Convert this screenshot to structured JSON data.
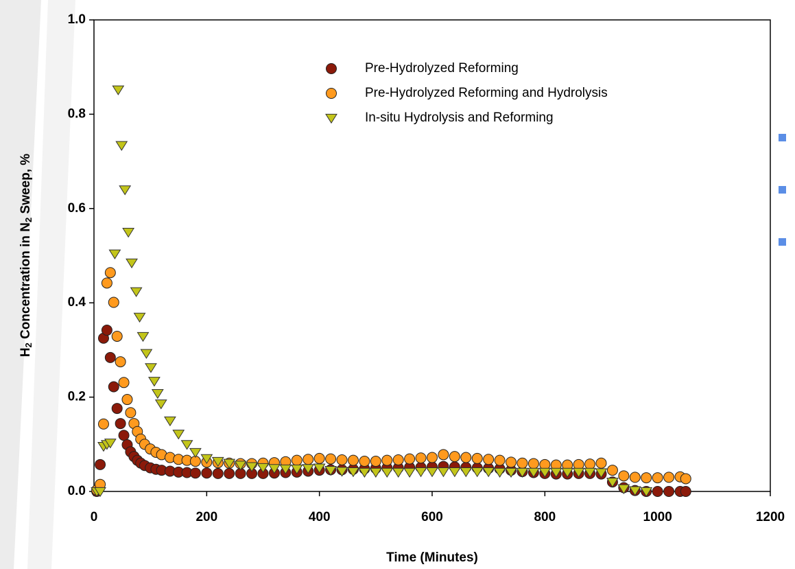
{
  "chart_data": {
    "type": "scatter",
    "xlabel": "Time (Minutes)",
    "ylabel_parts": [
      "H",
      "2",
      " Concentration in N",
      "2",
      " Sweep, %"
    ],
    "xlim": [
      0,
      1200
    ],
    "xticks": [
      0,
      200,
      400,
      600,
      800,
      1000,
      1200
    ],
    "ylim": [
      0,
      1
    ],
    "yticks": [
      {
        "value": 0,
        "label": "0.0"
      },
      0.2,
      0.4,
      0.6,
      0.8,
      {
        "value": 1,
        "label": "1.0"
      }
    ],
    "series": [
      {
        "name": "Pre-Hydrolyzed Reforming",
        "color": "#8b1a0a",
        "marker": "circle",
        "x": [
          5,
          11,
          17,
          23,
          29,
          35,
          41,
          47,
          53,
          59,
          65,
          71,
          77,
          83,
          90,
          100,
          110,
          120,
          135,
          150,
          165,
          180,
          200,
          220,
          240,
          260,
          280,
          300,
          320,
          340,
          360,
          380,
          400,
          420,
          440,
          460,
          480,
          500,
          520,
          540,
          560,
          580,
          600,
          620,
          640,
          660,
          680,
          700,
          720,
          740,
          760,
          780,
          800,
          820,
          840,
          860,
          880,
          900,
          920,
          940,
          960,
          980,
          1000,
          1020,
          1040,
          1050
        ],
        "values": [
          0.0,
          0.057,
          0.325,
          0.342,
          0.284,
          0.222,
          0.176,
          0.144,
          0.119,
          0.099,
          0.084,
          0.074,
          0.066,
          0.06,
          0.055,
          0.05,
          0.047,
          0.045,
          0.043,
          0.041,
          0.04,
          0.039,
          0.039,
          0.038,
          0.038,
          0.038,
          0.038,
          0.038,
          0.039,
          0.04,
          0.041,
          0.043,
          0.045,
          0.046,
          0.046,
          0.047,
          0.048,
          0.049,
          0.05,
          0.05,
          0.051,
          0.051,
          0.052,
          0.053,
          0.052,
          0.051,
          0.05,
          0.049,
          0.048,
          0.045,
          0.042,
          0.04,
          0.038,
          0.037,
          0.037,
          0.038,
          0.038,
          0.037,
          0.02,
          0.008,
          0.002,
          0.0,
          0.0,
          0.0,
          0.0,
          0.0
        ]
      },
      {
        "name": "Pre-Hydrolyzed Reforming and Hydrolysis",
        "color": "#ff9a1e",
        "marker": "circle",
        "x": [
          5,
          11,
          17,
          23,
          29,
          35,
          41,
          47,
          53,
          59,
          65,
          71,
          77,
          83,
          90,
          100,
          110,
          120,
          135,
          150,
          165,
          180,
          200,
          220,
          240,
          260,
          280,
          300,
          320,
          340,
          360,
          380,
          400,
          420,
          440,
          460,
          480,
          500,
          520,
          540,
          560,
          580,
          600,
          620,
          640,
          660,
          680,
          700,
          720,
          740,
          760,
          780,
          800,
          820,
          840,
          860,
          880,
          900,
          920,
          940,
          960,
          980,
          1000,
          1020,
          1040,
          1050
        ],
        "values": [
          0.003,
          0.015,
          0.143,
          0.442,
          0.464,
          0.401,
          0.329,
          0.275,
          0.231,
          0.195,
          0.167,
          0.144,
          0.127,
          0.111,
          0.1,
          0.09,
          0.083,
          0.078,
          0.072,
          0.068,
          0.066,
          0.064,
          0.062,
          0.061,
          0.06,
          0.059,
          0.059,
          0.06,
          0.061,
          0.063,
          0.066,
          0.068,
          0.07,
          0.069,
          0.067,
          0.066,
          0.064,
          0.064,
          0.066,
          0.067,
          0.069,
          0.071,
          0.072,
          0.078,
          0.074,
          0.072,
          0.07,
          0.068,
          0.066,
          0.062,
          0.06,
          0.059,
          0.057,
          0.056,
          0.056,
          0.057,
          0.058,
          0.06,
          0.045,
          0.033,
          0.03,
          0.029,
          0.029,
          0.03,
          0.031,
          0.027
        ]
      },
      {
        "name": "In-situ Hydrolysis and Reforming",
        "color": "#c3c51a",
        "marker": "triangle",
        "x": [
          5,
          11,
          17,
          23,
          29,
          37,
          43,
          49,
          55,
          61,
          67,
          75,
          81,
          87,
          93,
          101,
          107,
          113,
          119,
          135,
          150,
          165,
          180,
          200,
          220,
          240,
          260,
          280,
          300,
          320,
          340,
          360,
          380,
          400,
          420,
          440,
          460,
          480,
          500,
          520,
          540,
          560,
          580,
          600,
          620,
          640,
          660,
          680,
          700,
          720,
          740,
          760,
          780,
          800,
          820,
          840,
          860,
          880,
          900,
          920,
          940,
          960,
          980
        ],
        "values": [
          0.0,
          0.0,
          0.096,
          0.1,
          0.103,
          0.504,
          0.852,
          0.734,
          0.64,
          0.55,
          0.485,
          0.424,
          0.37,
          0.329,
          0.293,
          0.263,
          0.234,
          0.208,
          0.186,
          0.15,
          0.122,
          0.1,
          0.083,
          0.07,
          0.064,
          0.06,
          0.056,
          0.053,
          0.051,
          0.049,
          0.048,
          0.048,
          0.049,
          0.05,
          0.045,
          0.043,
          0.042,
          0.041,
          0.041,
          0.041,
          0.041,
          0.041,
          0.042,
          0.042,
          0.042,
          0.042,
          0.042,
          0.042,
          0.042,
          0.041,
          0.041,
          0.041,
          0.041,
          0.041,
          0.041,
          0.041,
          0.041,
          0.041,
          0.04,
          0.02,
          0.006,
          0.002,
          0.0
        ]
      }
    ]
  }
}
